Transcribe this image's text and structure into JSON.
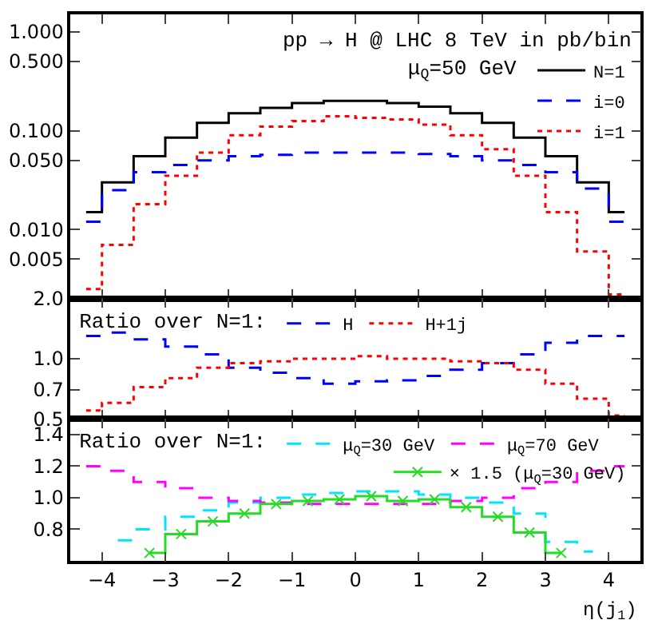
{
  "chart_data": [
    {
      "type": "step",
      "title": "pp → H @ LHC 8 TeV in pb/bin",
      "legend_title": "μ$_{Q}$=50 GeV",
      "legend": "top right",
      "log": "y",
      "tick_labels": "y",
      "x": [
        -4.25,
        -3.75,
        -3.25,
        -2.75,
        -2.25,
        -1.75,
        -1.25,
        -0.75,
        -0.25,
        0.25,
        0.75,
        1.25,
        1.75,
        2.25,
        2.75,
        3.25,
        3.75,
        4.25
      ],
      "xlim": [
        -4.5,
        4.5
      ],
      "xticks": [
        -4,
        -3,
        -2,
        -1,
        0,
        1,
        2,
        3,
        4
      ],
      "ylim": [
        0.002,
        1.5
      ],
      "yticks": [
        {
          "value": 0.005,
          "label": "0.005"
        },
        {
          "value": 0.01,
          "label": "0.010"
        },
        {
          "value": 0.05,
          "label": "0.050"
        },
        {
          "value": 0.1,
          "label": "0.100"
        },
        {
          "value": 0.5,
          "label": "0.500"
        },
        {
          "value": 1,
          "label": "1.000"
        }
      ],
      "series": [
        {
          "name": "N=1",
          "color": "#000000",
          "line_style": "solid",
          "values": [
            0.015,
            0.03,
            0.055,
            0.085,
            0.12,
            0.15,
            0.17,
            0.19,
            0.2,
            0.2,
            0.19,
            0.175,
            0.15,
            0.12,
            0.085,
            0.055,
            0.03,
            0.015
          ]
        },
        {
          "name": "i=0",
          "color": "#0000ff",
          "line_style": "dashed",
          "values": [
            0.012,
            0.025,
            0.038,
            0.045,
            0.05,
            0.055,
            0.057,
            0.06,
            0.06,
            0.06,
            0.06,
            0.058,
            0.055,
            0.05,
            0.045,
            0.038,
            0.026,
            0.012
          ]
        },
        {
          "name": "i=1",
          "color": "#ff0000",
          "line_style": "dotted",
          "values": [
            0.0025,
            0.007,
            0.018,
            0.035,
            0.06,
            0.09,
            0.11,
            0.125,
            0.14,
            0.135,
            0.13,
            0.115,
            0.09,
            0.065,
            0.035,
            0.015,
            0.006,
            0.0022
          ]
        }
      ]
    },
    {
      "type": "step",
      "legend_title": "Ratio over N=1:",
      "legend": "top",
      "log": "y",
      "tick_labels": "y",
      "x": [
        -4.25,
        -3.75,
        -3.25,
        -2.75,
        -2.25,
        -1.75,
        -1.25,
        -0.75,
        -0.25,
        0.25,
        0.75,
        1.25,
        1.75,
        2.25,
        2.75,
        3.25,
        3.75,
        4.25
      ],
      "xlim": [
        -4.5,
        4.5
      ],
      "xticks": [
        -4,
        -3,
        -2,
        -1,
        0,
        1,
        2,
        3,
        4
      ],
      "ylim": [
        0.5,
        2.0
      ],
      "yticks": [
        {
          "value": 0.5,
          "label": "0.5"
        },
        {
          "value": 0.7,
          "label": "0.7"
        },
        {
          "value": 1,
          "label": "1.0"
        },
        {
          "value": 2,
          "label": "2.0"
        }
      ],
      "series": [
        {
          "name": "H",
          "color": "#0000ff",
          "line_style": "dashed",
          "values": [
            1.3,
            1.35,
            1.25,
            1.15,
            1.05,
            0.9,
            0.85,
            0.8,
            0.75,
            0.77,
            0.78,
            0.82,
            0.88,
            0.95,
            1.05,
            1.2,
            1.3,
            1.3
          ]
        },
        {
          "name": "H+1j",
          "color": "#ff0000",
          "line_style": "dotted",
          "values": [
            0.55,
            0.6,
            0.72,
            0.8,
            0.9,
            0.95,
            0.97,
            1.0,
            1.0,
            1.03,
            1.0,
            1.0,
            0.97,
            0.95,
            0.88,
            0.75,
            0.63,
            0.52
          ]
        }
      ]
    },
    {
      "type": "step",
      "legend_title": "Ratio over N=1:",
      "legend": "top",
      "xlabel": "η(j$_{1}$)",
      "x": [
        -4.25,
        -3.75,
        -3.25,
        -2.75,
        -2.25,
        -1.75,
        -1.25,
        -0.75,
        -0.25,
        0.25,
        0.75,
        1.25,
        1.75,
        2.25,
        2.75,
        3.25,
        3.75,
        4.25
      ],
      "xlim": [
        -4.5,
        4.5
      ],
      "xticks": [
        {
          "value": -4,
          "label": "−4"
        },
        {
          "value": -3,
          "label": "−3"
        },
        {
          "value": -2,
          "label": "−2"
        },
        {
          "value": -1,
          "label": "−1"
        },
        0,
        1,
        2,
        3,
        4
      ],
      "ylim": [
        0.6,
        1.5
      ],
      "yticks": [
        {
          "value": 0.8,
          "label": "0.8"
        },
        {
          "value": 1,
          "label": "1.0"
        },
        {
          "value": 1.2,
          "label": "1.2"
        },
        {
          "value": 1.4,
          "label": "1.4"
        }
      ],
      "series": [
        {
          "name": "μ$_{Q}$=30 GeV",
          "color": "#00e5ff",
          "line_style": "dashed",
          "values": [
            null,
            0.73,
            0.8,
            0.88,
            0.92,
            0.97,
            1.0,
            1.02,
            1.03,
            1.04,
            1.04,
            1.02,
            1.0,
            0.97,
            0.9,
            0.72,
            0.66,
            null
          ]
        },
        {
          "name": "μ$_{Q}$=70 GeV",
          "color": "#ff00ff",
          "line_style": "dashed",
          "values": [
            1.2,
            1.17,
            1.1,
            1.06,
            1.0,
            0.98,
            0.97,
            0.96,
            0.96,
            0.96,
            0.96,
            0.96,
            0.98,
            1.0,
            1.06,
            1.1,
            1.17,
            1.2
          ]
        },
        {
          "name": "× 1.5 (μ$_{Q}$=30 GeV)",
          "color": "#22dd22",
          "line_style": "solid",
          "marker": "cross",
          "values": [
            null,
            null,
            0.65,
            0.77,
            0.85,
            0.9,
            0.96,
            0.98,
            0.99,
            1.01,
            0.98,
            0.99,
            0.94,
            0.88,
            0.78,
            0.65,
            null,
            null
          ]
        }
      ]
    }
  ]
}
